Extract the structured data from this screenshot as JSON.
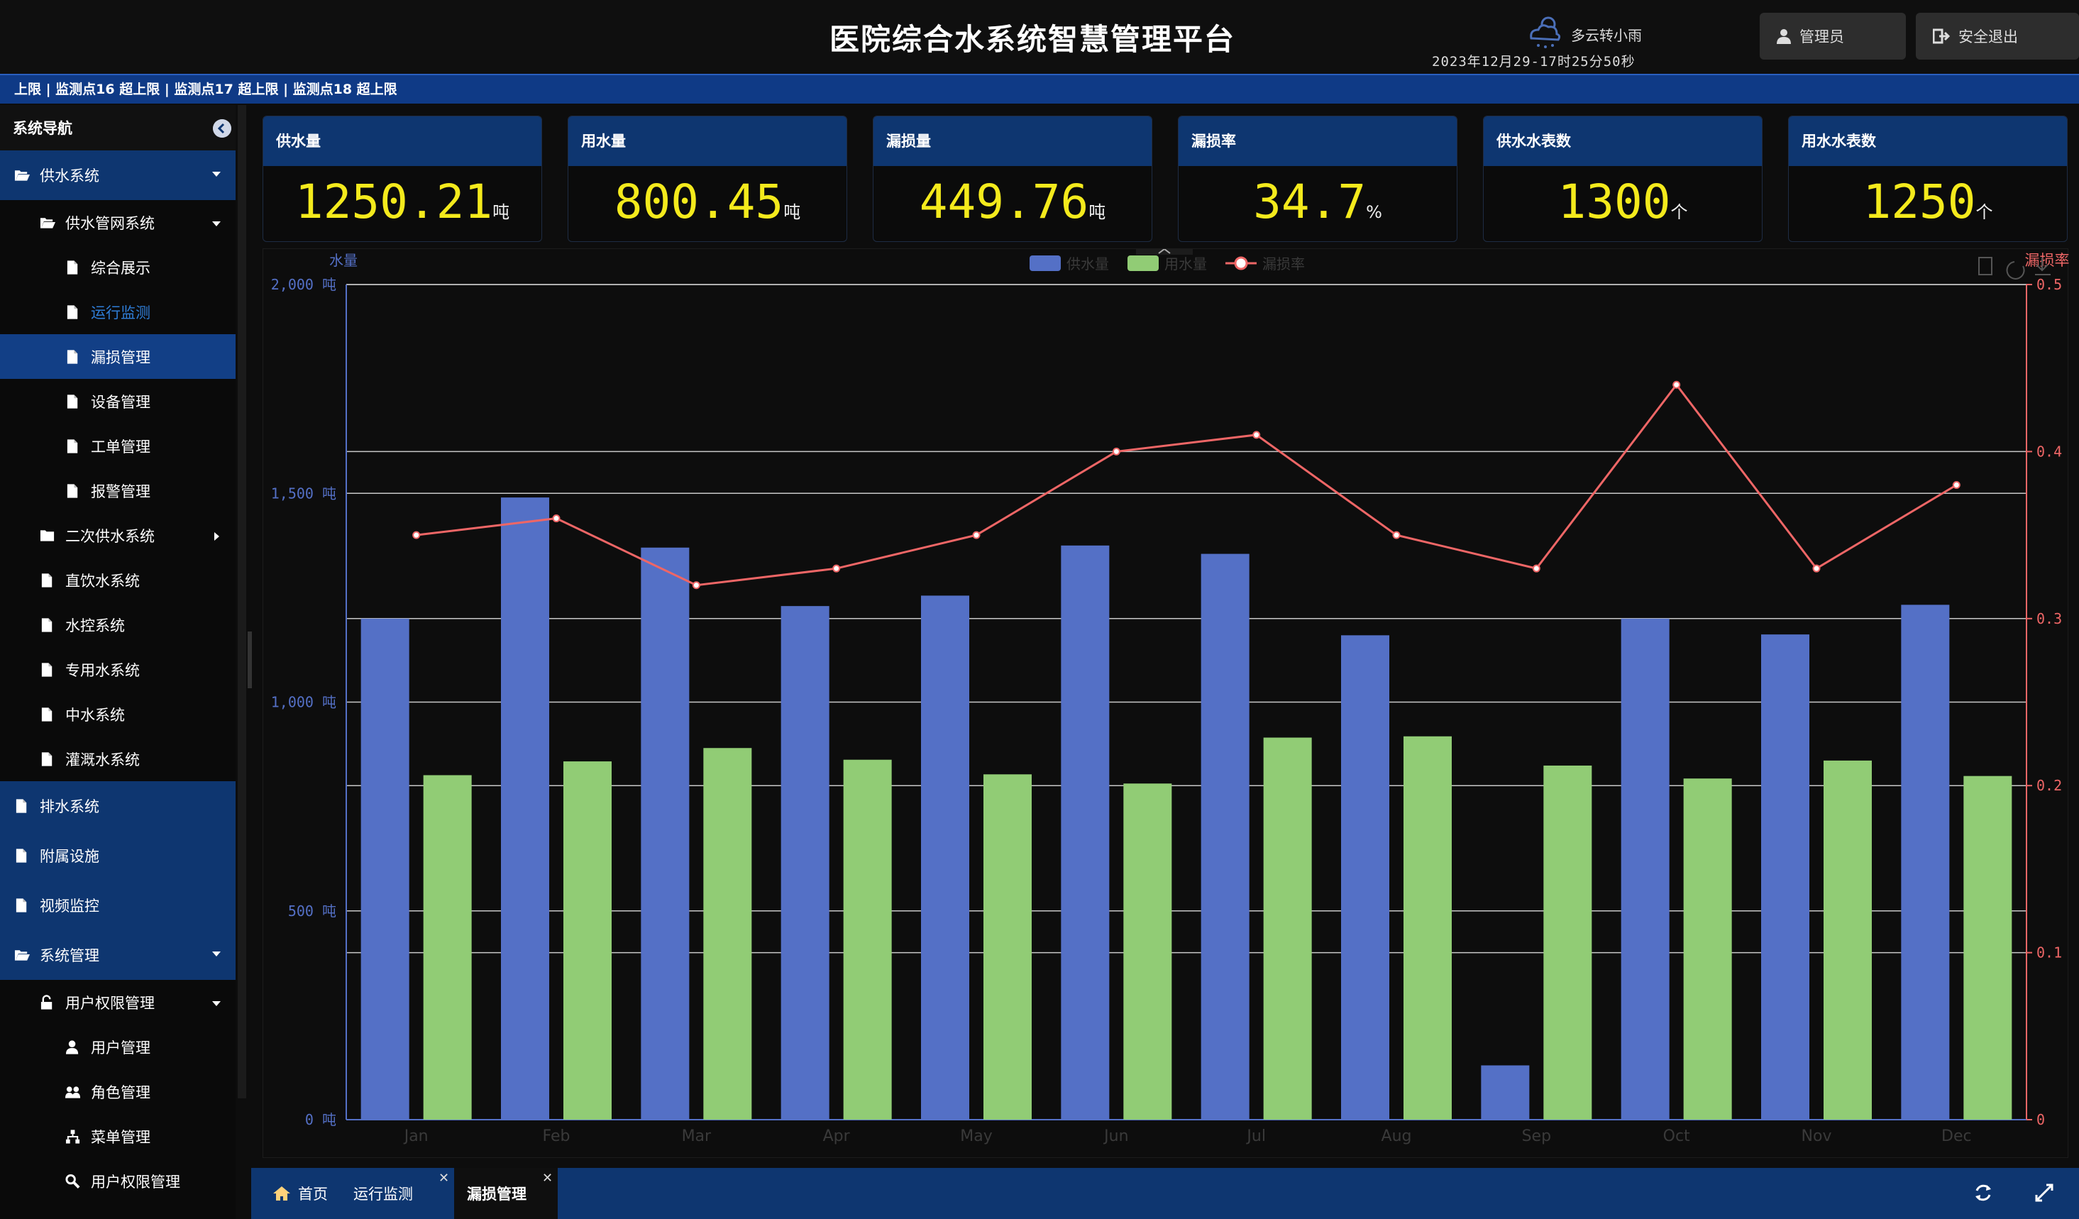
{
  "header": {
    "title": "医院综合水系统智慧管理平台",
    "weather": "多云转小雨",
    "datetime": "2023年12月29-17时25分50秒",
    "admin_label": "管理员",
    "logout_label": "安全退出"
  },
  "ticker": "‌上限  |  监测点16  超上限  |  监测点17  超上限  |  监测点18  超上限",
  "sidebar": {
    "title": "系统导航",
    "items": [
      {
        "label": "供水系统",
        "level": 0,
        "icon": "folder-open-icon",
        "caret": "down"
      },
      {
        "label": "供水管网系统",
        "level": 1,
        "icon": "folder-open-icon",
        "caret": "down"
      },
      {
        "label": "综合展示",
        "level": 2,
        "icon": "file-icon"
      },
      {
        "label": "运行监测",
        "level": 2,
        "icon": "file-icon",
        "current": true
      },
      {
        "label": "漏损管理",
        "level": 2,
        "icon": "file-icon",
        "active": true
      },
      {
        "label": "设备管理",
        "level": 2,
        "icon": "file-icon"
      },
      {
        "label": "工单管理",
        "level": 2,
        "icon": "file-icon"
      },
      {
        "label": "报警管理",
        "level": 2,
        "icon": "file-icon"
      },
      {
        "label": "二次供水系统",
        "level": 1,
        "icon": "folder-icon",
        "caret": "right"
      },
      {
        "label": "直饮水系统",
        "level": 1,
        "icon": "file-icon"
      },
      {
        "label": "水控系统",
        "level": 1,
        "icon": "file-icon"
      },
      {
        "label": "专用水系统",
        "level": 1,
        "icon": "file-icon"
      },
      {
        "label": "中水系统",
        "level": 1,
        "icon": "file-icon"
      },
      {
        "label": "灌溉水系统",
        "level": 1,
        "icon": "file-icon"
      },
      {
        "label": "排水系统",
        "level": 0,
        "icon": "file-icon"
      },
      {
        "label": "附属设施",
        "level": 0,
        "icon": "file-icon"
      },
      {
        "label": "视频监控",
        "level": 0,
        "icon": "file-icon"
      },
      {
        "label": "系统管理",
        "level": 0,
        "icon": "folder-open-icon",
        "caret": "down"
      },
      {
        "label": "用户权限管理",
        "level": 1,
        "icon": "unlock-icon",
        "caret": "down"
      },
      {
        "label": "用户管理",
        "level": 2,
        "icon": "user-icon"
      },
      {
        "label": "角色管理",
        "level": 2,
        "icon": "users-icon"
      },
      {
        "label": "菜单管理",
        "level": 2,
        "icon": "sitemap-icon"
      },
      {
        "label": "用户权限管理",
        "level": 2,
        "icon": "key-search-icon"
      }
    ]
  },
  "cards": [
    {
      "title": "供水量",
      "value": "1250.21",
      "unit": "吨"
    },
    {
      "title": "用水量",
      "value": "800.45",
      "unit": "吨"
    },
    {
      "title": "漏损量",
      "value": "449.76",
      "unit": "吨"
    },
    {
      "title": "漏损率",
      "value": "34.7",
      "unit": "%"
    },
    {
      "title": "供水水表数",
      "value": "1300",
      "unit": "个"
    },
    {
      "title": "用水水表数",
      "value": "1250",
      "unit": "个"
    }
  ],
  "chart_data": {
    "type": "bar",
    "categories": [
      "Jan",
      "Feb",
      "Mar",
      "Apr",
      "May",
      "Jun",
      "Jul",
      "Aug",
      "Sep",
      "Oct",
      "Nov",
      "Dec"
    ],
    "series": [
      {
        "name": "供水量",
        "type": "bar",
        "axis": "left",
        "color": "#5470c6",
        "values": [
          1200,
          1490,
          1370,
          1230,
          1255,
          1375,
          1355,
          1160,
          130,
          1200,
          1162,
          1233
        ]
      },
      {
        "name": "用水量",
        "type": "bar",
        "axis": "left",
        "color": "#91cc75",
        "values": [
          825,
          858,
          890,
          862,
          827,
          805,
          915,
          918,
          848,
          817,
          860,
          823
        ]
      },
      {
        "name": "漏损率",
        "type": "line",
        "axis": "right",
        "color": "#ee6666",
        "values": [
          0.35,
          0.36,
          0.32,
          0.33,
          0.35,
          0.4,
          0.41,
          0.35,
          0.33,
          0.44,
          0.33,
          0.38
        ]
      }
    ],
    "ylabel_left": "水量",
    "ylabel_right": "漏损率",
    "ylim_left": [
      0,
      2000
    ],
    "ylim_right": [
      0,
      0.5
    ],
    "yticks_left": [
      "0  吨",
      "500  吨",
      "1,000  吨",
      "1,500  吨",
      "2,000  吨"
    ],
    "yticks_right": [
      "0",
      "0.1",
      "0.2",
      "0.3",
      "0.4",
      "0.5"
    ],
    "legend_position": "top-center",
    "grid": true
  },
  "tabs": [
    {
      "label": "首页",
      "icon": "home-icon"
    },
    {
      "label": "运行监测",
      "closable": true
    },
    {
      "label": "漏损管理",
      "closable": true,
      "active": true
    }
  ]
}
